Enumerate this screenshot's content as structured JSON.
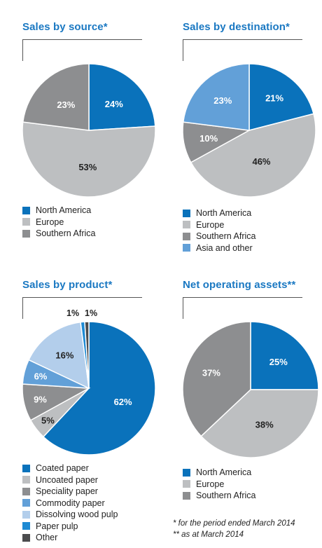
{
  "colors": {
    "blue": "#0a72bb",
    "light_grey": "#bdbfc1",
    "grey": "#8d8e90",
    "light_blue": "#62a0d8",
    "pale_blue": "#b3ceeb",
    "mid_blue": "#1e8ad3",
    "dark_grey": "#4b4c4e",
    "title_blue": "#1a78c2"
  },
  "chart_data": [
    {
      "type": "pie",
      "title": "Sales by source*",
      "series": [
        {
          "name": "North America",
          "value": 24,
          "label": "24%",
          "color": "#0a72bb"
        },
        {
          "name": "Europe",
          "value": 53,
          "label": "53%",
          "color": "#bdbfc1"
        },
        {
          "name": "Southern Africa",
          "value": 23,
          "label": "23%",
          "color": "#8d8e90"
        }
      ]
    },
    {
      "type": "pie",
      "title": "Sales by destination*",
      "series": [
        {
          "name": "North America",
          "value": 21,
          "label": "21%",
          "color": "#0a72bb"
        },
        {
          "name": "Europe",
          "value": 46,
          "label": "46%",
          "color": "#bdbfc1"
        },
        {
          "name": "Southern Africa",
          "value": 10,
          "label": "10%",
          "color": "#8d8e90"
        },
        {
          "name": "Asia and other",
          "value": 23,
          "label": "23%",
          "color": "#62a0d8"
        }
      ]
    },
    {
      "type": "pie",
      "title": "Sales by product*",
      "series": [
        {
          "name": "Coated paper",
          "value": 62,
          "label": "62%",
          "color": "#0a72bb"
        },
        {
          "name": "Uncoated paper",
          "value": 5,
          "label": "5%",
          "color": "#bdbfc1"
        },
        {
          "name": "Speciality paper",
          "value": 9,
          "label": "9%",
          "color": "#8d8e90"
        },
        {
          "name": "Commodity paper",
          "value": 6,
          "label": "6%",
          "color": "#62a0d8"
        },
        {
          "name": "Dissolving wood pulp",
          "value": 16,
          "label": "16%",
          "color": "#b3ceeb"
        },
        {
          "name": "Paper pulp",
          "value": 1,
          "label": "1%",
          "color": "#1e8ad3"
        },
        {
          "name": "Other",
          "value": 1,
          "label": "1%",
          "color": "#4b4c4e"
        }
      ]
    },
    {
      "type": "pie",
      "title": "Net operating assets**",
      "series": [
        {
          "name": "North America",
          "value": 25,
          "label": "25%",
          "color": "#0a72bb"
        },
        {
          "name": "Europe",
          "value": 38,
          "label": "38%",
          "color": "#bdbfc1"
        },
        {
          "name": "Southern Africa",
          "value": 37,
          "label": "37%",
          "color": "#8d8e90"
        }
      ]
    }
  ],
  "footnotes": {
    "period": "*  for the period ended March 2014",
    "asat": "** as at March 2014"
  }
}
